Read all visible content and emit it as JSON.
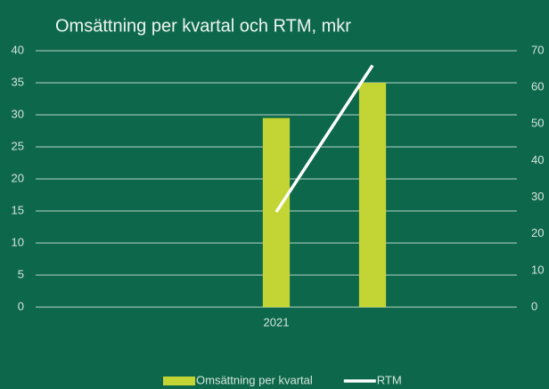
{
  "chart_data": {
    "type": "bar",
    "title": "Omsättning per kvartal och RTM, mkr",
    "categories": [
      null,
      null,
      "2021",
      null,
      null
    ],
    "series": [
      {
        "name": "Omsättning per kvartal",
        "type": "bar",
        "color": "#c3d534",
        "values": [
          null,
          null,
          29.5,
          35,
          null
        ]
      },
      {
        "name": "RTM",
        "type": "line",
        "color": "#ffffff",
        "axis": "y2",
        "values": [
          null,
          null,
          26,
          66,
          null
        ]
      }
    ],
    "ylim": [
      0,
      40
    ],
    "yticks": [
      0,
      5,
      10,
      15,
      20,
      25,
      30,
      35,
      40
    ],
    "y2lim": [
      0,
      70
    ],
    "y2ticks": [
      0,
      10,
      20,
      30,
      40,
      50,
      60,
      70
    ],
    "grid": true,
    "legend": "bottom"
  }
}
